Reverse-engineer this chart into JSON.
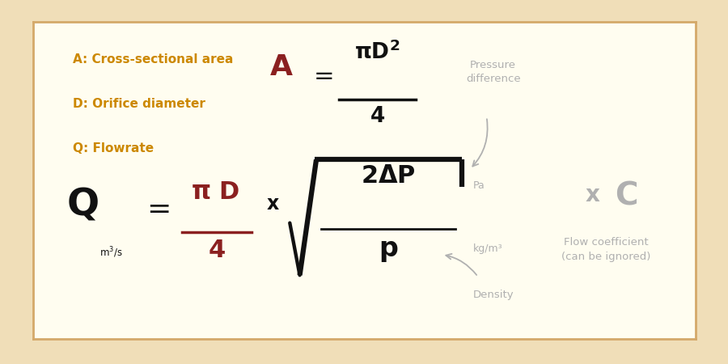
{
  "bg_outer": "#f0deb8",
  "bg_inner": "#fffdf0",
  "border_color": "#d4a96a",
  "orange_color": "#cc8800",
  "dark_red_color": "#8b2020",
  "black_color": "#111111",
  "gray_color": "#b0b0b0",
  "label_A": "A: Cross-sectional area",
  "label_D": "D: Orifice diameter",
  "label_Q": "Q: Flowrate",
  "pressure_label": "Pressure\ndifference",
  "density_label": "Density",
  "pa_label": "Pa",
  "kg_label": "kg/m³",
  "flow_coeff_label": "Flow coefficient\n(can be ignored)",
  "figw": 9.0,
  "figh": 4.5,
  "dpi": 100
}
